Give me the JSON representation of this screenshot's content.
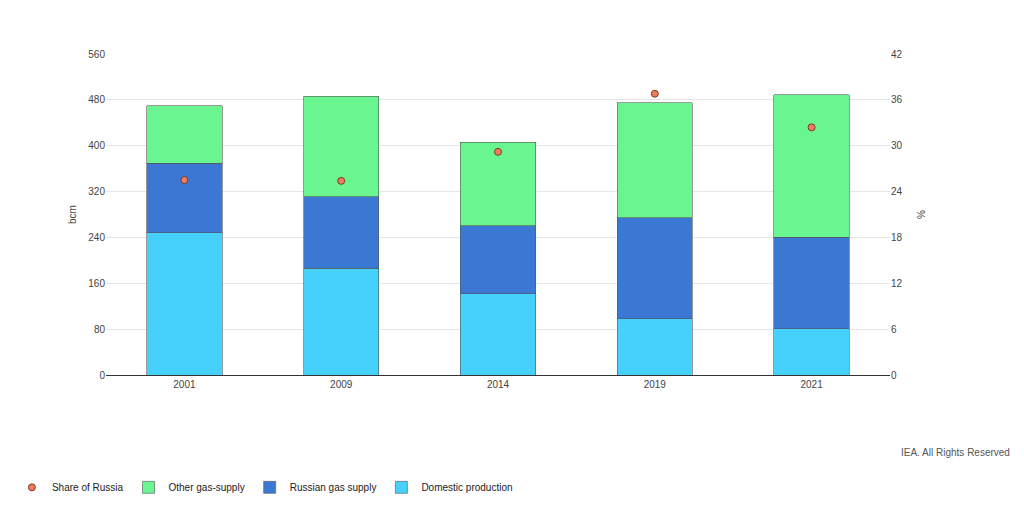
{
  "chart_data": {
    "type": "bar",
    "stacked": true,
    "categories": [
      "2001",
      "2009",
      "2014",
      "2019",
      "2021"
    ],
    "y_label": "bcm",
    "y2_label": "%",
    "ylim": [
      0,
      560
    ],
    "yticks": [
      0,
      80,
      160,
      240,
      320,
      400,
      480,
      560
    ],
    "y2lim": [
      0,
      42
    ],
    "y2ticks": [
      0,
      6,
      12,
      18,
      24,
      30,
      36,
      42
    ],
    "grid": true,
    "legend": "bottom",
    "annotations": [
      "IEA. All Rights Reserved"
    ],
    "series": [
      {
        "name": "Domestic production",
        "color": "#45d1fc",
        "values": [
          248,
          186,
          142,
          98,
          81
        ]
      },
      {
        "name": "Russian gas supply",
        "color": "#3b78d4",
        "values": [
          121,
          125,
          118,
          176,
          159
        ]
      },
      {
        "name": "Other gas-supply",
        "color": "#69f58f",
        "values": [
          101,
          175,
          146,
          201,
          249
        ]
      },
      {
        "name": "Share of Russia",
        "color": "#f07c5a",
        "type": "scatter",
        "marker": "circle",
        "axis": "y2",
        "values": [
          25.5,
          25.4,
          29.2,
          36.8,
          32.4
        ]
      }
    ]
  }
}
